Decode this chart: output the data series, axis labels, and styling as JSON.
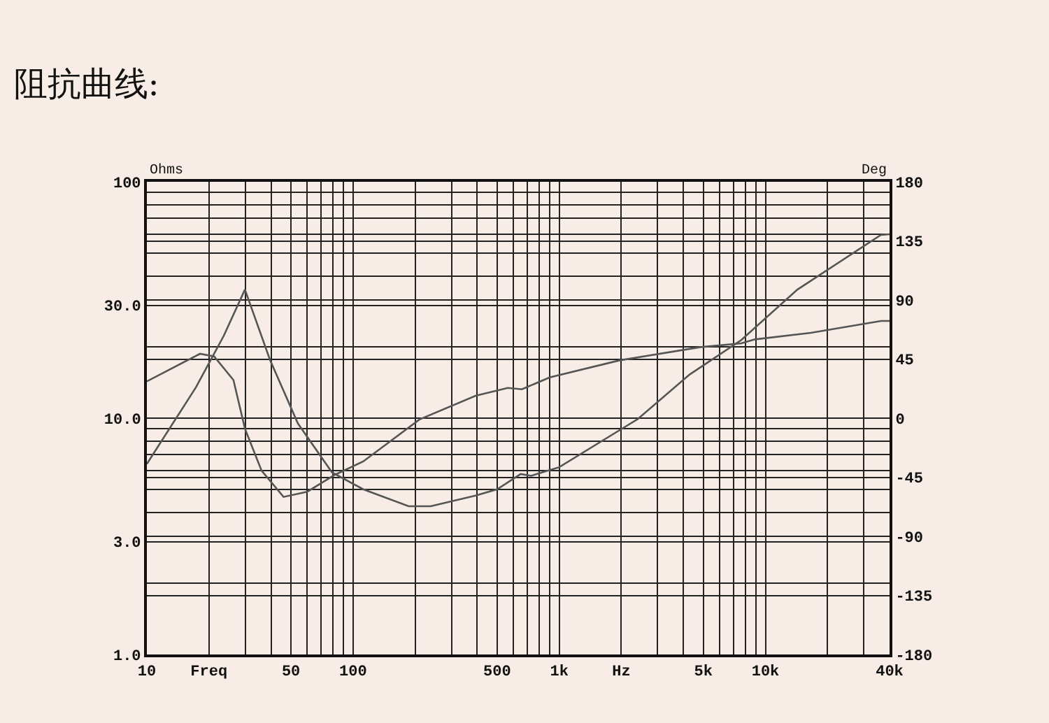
{
  "chart_data": {
    "type": "line",
    "title": "阻抗曲线:",
    "ylabel": "Ohms",
    "y2label": "Deg",
    "log": "xy",
    "grid": true,
    "marker": "none",
    "line_style": "solid",
    "xlim": [
      10,
      40000
    ],
    "xticks": [
      {
        "value": 10,
        "label": "10"
      },
      {
        "value": 20,
        "label": "Freq"
      },
      {
        "value": 30,
        "label": null
      },
      {
        "value": 40,
        "label": null
      },
      {
        "value": 50,
        "label": "50"
      },
      {
        "value": 60,
        "label": null
      },
      {
        "value": 70,
        "label": null
      },
      {
        "value": 80,
        "label": null
      },
      {
        "value": 90,
        "label": null
      },
      {
        "value": 100,
        "label": "100"
      },
      {
        "value": 200,
        "label": null
      },
      {
        "value": 300,
        "label": null
      },
      {
        "value": 400,
        "label": null
      },
      {
        "value": 500,
        "label": "500"
      },
      {
        "value": 600,
        "label": null
      },
      {
        "value": 700,
        "label": null
      },
      {
        "value": 800,
        "label": null
      },
      {
        "value": 900,
        "label": null
      },
      {
        "value": 1000,
        "label": "1k"
      },
      {
        "value": 2000,
        "label": "Hz"
      },
      {
        "value": 3000,
        "label": null
      },
      {
        "value": 4000,
        "label": null
      },
      {
        "value": 5000,
        "label": "5k"
      },
      {
        "value": 6000,
        "label": null
      },
      {
        "value": 7000,
        "label": null
      },
      {
        "value": 8000,
        "label": null
      },
      {
        "value": 9000,
        "label": null
      },
      {
        "value": 10000,
        "label": "10k"
      },
      {
        "value": 20000,
        "label": null
      },
      {
        "value": 30000,
        "label": null
      },
      {
        "value": 40000,
        "label": "40k"
      }
    ],
    "ylim": [
      1,
      100
    ],
    "yticks": [
      {
        "value": 1,
        "label": "1.0"
      },
      {
        "value": 2,
        "label": null
      },
      {
        "value": 3,
        "label": "3.0"
      },
      {
        "value": 4,
        "label": null
      },
      {
        "value": 5,
        "label": null
      },
      {
        "value": 6,
        "label": null
      },
      {
        "value": 7,
        "label": null
      },
      {
        "value": 8,
        "label": null
      },
      {
        "value": 9,
        "label": null
      },
      {
        "value": 10,
        "label": "10.0"
      },
      {
        "value": 20,
        "label": null
      },
      {
        "value": 30,
        "label": "30.0"
      },
      {
        "value": 40,
        "label": null
      },
      {
        "value": 50,
        "label": null
      },
      {
        "value": 60,
        "label": null
      },
      {
        "value": 70,
        "label": null
      },
      {
        "value": 80,
        "label": null
      },
      {
        "value": 90,
        "label": null
      },
      {
        "value": 100,
        "label": "100"
      }
    ],
    "y2lim": [
      -180,
      180
    ],
    "y2ticks": [
      -180,
      -135,
      -90,
      -45,
      0,
      45,
      90,
      135,
      180
    ],
    "series": [
      {
        "color": "#555555",
        "x": [
          10,
          17.3,
          23.6,
          29.9,
          39.5,
          54,
          79,
          112,
          186,
          238,
          393,
          500,
          650,
          730,
          1000,
          2090,
          2400,
          4290,
          7640,
          14300,
          36300,
          40000
        ],
        "values": [
          6.4,
          13.5,
          22.3,
          35,
          17.7,
          9.5,
          5.9,
          5.0,
          4.24,
          4.24,
          4.7,
          5.0,
          5.8,
          5.7,
          6.2,
          9.2,
          9.9,
          15.3,
          21.4,
          35,
          59.6,
          60
        ]
      },
      {
        "color": "#555555",
        "axis": "y2",
        "x": [
          10,
          18.1,
          21.2,
          26.3,
          29.9,
          36,
          46,
          60,
          82,
          112,
          210,
          393,
          563,
          659,
          899,
          1960,
          4790,
          7640,
          8900,
          16600,
          36400,
          40000
        ],
        "values": [
          28,
          49,
          47,
          29,
          -8,
          -40,
          -60,
          -56,
          -43,
          -33,
          -1,
          17,
          23,
          22,
          31,
          44,
          54,
          57,
          60,
          65,
          74,
          74
        ]
      }
    ]
  }
}
